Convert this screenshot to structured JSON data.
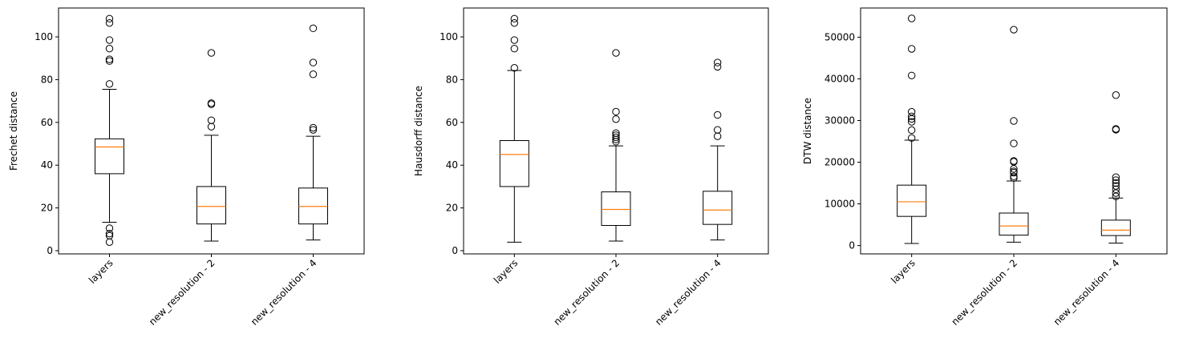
{
  "chart_data": [
    {
      "type": "box",
      "ylabel": "Frechet distance",
      "categories": [
        "layers",
        "new_resolution - 2",
        "new_resolution - 4"
      ],
      "ylim": [
        -1.5,
        113.5
      ],
      "yticks": [
        0,
        20,
        40,
        60,
        80,
        100
      ],
      "boxes": [
        {
          "whislo": 13.3,
          "q1": 36,
          "med": 48.5,
          "q3": 52.3,
          "whishi": 75.5,
          "fliers": [
            108.5,
            106.5,
            98.5,
            94.5,
            89.5,
            88.7,
            78,
            10.5,
            8,
            7,
            4
          ]
        },
        {
          "whislo": 4.5,
          "q1": 12.5,
          "med": 20.7,
          "q3": 30,
          "whishi": 54,
          "fliers": [
            92.5,
            69,
            68.5,
            61,
            58
          ]
        },
        {
          "whislo": 5,
          "q1": 12.5,
          "med": 20.7,
          "q3": 29.3,
          "whishi": 53.5,
          "fliers": [
            104,
            88,
            82.5,
            57.5,
            56.5
          ]
        }
      ]
    },
    {
      "type": "box",
      "ylabel": "Hausdorff distance",
      "categories": [
        "layers",
        "new_resolution - 2",
        "new_resolution - 4"
      ],
      "ylim": [
        -1.5,
        113.5
      ],
      "yticks": [
        0,
        20,
        40,
        60,
        80,
        100
      ],
      "boxes": [
        {
          "whislo": 4,
          "q1": 30,
          "med": 45,
          "q3": 51.5,
          "whishi": 84.3,
          "fliers": [
            108.5,
            106.5,
            98.5,
            94.5,
            85.5
          ]
        },
        {
          "whislo": 4.5,
          "q1": 11.8,
          "med": 19.3,
          "q3": 27.5,
          "whishi": 49,
          "fliers": [
            92.5,
            65,
            61.5,
            55,
            54,
            53,
            52,
            51
          ]
        },
        {
          "whislo": 5,
          "q1": 12.3,
          "med": 19,
          "q3": 27.8,
          "whishi": 49,
          "fliers": [
            88,
            86,
            63.5,
            56.5,
            53.5
          ]
        }
      ]
    },
    {
      "type": "box",
      "ylabel": "DTW distance",
      "categories": [
        "layers",
        "new_resolution - 2",
        "new_resolution - 4"
      ],
      "ylim": [
        -2000,
        57000
      ],
      "yticks": [
        0,
        10000,
        20000,
        30000,
        40000,
        50000
      ],
      "boxes": [
        {
          "whislo": 500,
          "q1": 7000,
          "med": 10500,
          "q3": 14500,
          "whishi": 25300,
          "fliers": [
            54500,
            47200,
            40800,
            32100,
            31000,
            30400,
            29700,
            27700,
            25800
          ]
        },
        {
          "whislo": 800,
          "q1": 2500,
          "med": 4700,
          "q3": 7800,
          "whishi": 15500,
          "fliers": [
            51800,
            29900,
            24500,
            20300,
            20100,
            18400,
            17800,
            17500,
            16600,
            16200
          ]
        },
        {
          "whislo": 600,
          "q1": 2400,
          "med": 3700,
          "q3": 6100,
          "whishi": 11400,
          "fliers": [
            36100,
            28000,
            27800,
            16400,
            15700,
            15000,
            14300,
            13500,
            12600,
            11800
          ]
        }
      ]
    }
  ]
}
